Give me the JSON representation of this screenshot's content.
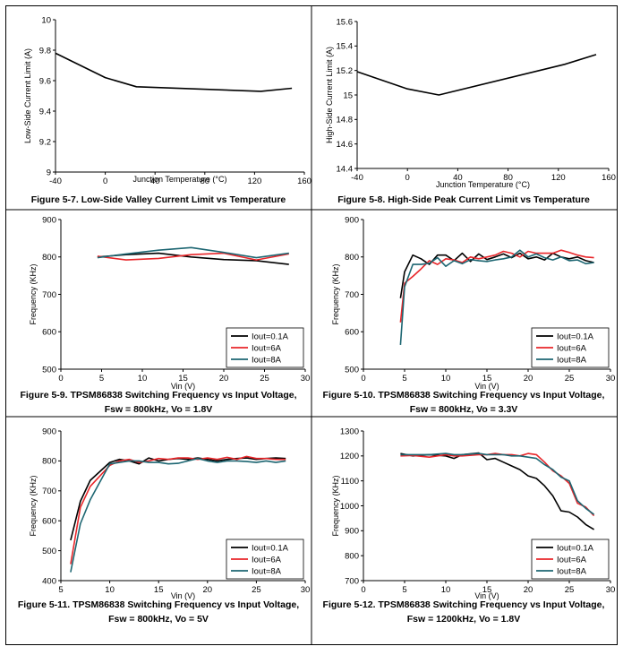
{
  "chart_data": [
    {
      "type": "line",
      "caption": [
        "Figure 5-7. Low-Side Valley Current Limit vs Temperature"
      ],
      "xlabel": "Junction Temperature (°C)",
      "ylabel": "Low-Side Current Limit (A)",
      "xlim": [
        -40,
        160
      ],
      "ylim": [
        9,
        10
      ],
      "xticks": [
        -40,
        0,
        40,
        80,
        120,
        160
      ],
      "yticks": [
        9,
        9.2,
        9.4,
        9.6,
        9.8,
        10
      ],
      "legend": [],
      "series": [
        {
          "color": "#000000",
          "x": [
            -40,
            0,
            25,
            125,
            150
          ],
          "y": [
            9.78,
            9.62,
            9.56,
            9.53,
            9.55
          ]
        }
      ]
    },
    {
      "type": "line",
      "caption": [
        "Figure 5-8. High-Side Peak Current Limit vs Temperature"
      ],
      "xlabel": "Junction Temperature (°C)",
      "ylabel": "High-Side Current Limit (A)",
      "xlim": [
        -40,
        160
      ],
      "ylim": [
        14.4,
        15.6
      ],
      "xticks": [
        -40,
        0,
        40,
        80,
        120,
        160
      ],
      "yticks": [
        14.4,
        14.6,
        14.8,
        15,
        15.2,
        15.4,
        15.6
      ],
      "legend": [],
      "series": [
        {
          "color": "#000000",
          "x": [
            -40,
            0,
            25,
            125,
            150
          ],
          "y": [
            15.19,
            15.05,
            15.0,
            15.25,
            15.33
          ]
        }
      ]
    },
    {
      "type": "line",
      "caption": [
        "Figure 5-9. TPSM86838 Switching Frequency vs Input Voltage,",
        "Fsw = 800kHz, Vo = 1.8V"
      ],
      "xlabel": "Vin (V)",
      "ylabel": "Frequency (KHz)",
      "xlim": [
        0,
        30
      ],
      "ylim": [
        500,
        900
      ],
      "xticks": [
        0,
        5,
        10,
        15,
        20,
        25,
        30
      ],
      "yticks": [
        500,
        600,
        700,
        800,
        900
      ],
      "legend": [
        "Iout=0.1A",
        "Iout=6A",
        "Iout=8A"
      ],
      "series": [
        {
          "name": "Iout=0.1A",
          "color": "#000000",
          "x": [
            4.5,
            8,
            12,
            16,
            20,
            24,
            28
          ],
          "y": [
            800,
            806,
            810,
            800,
            793,
            790,
            780
          ]
        },
        {
          "name": "Iout=6A",
          "color": "#e8262a",
          "x": [
            4.5,
            8,
            12,
            16,
            20,
            24,
            28
          ],
          "y": [
            802,
            792,
            796,
            806,
            810,
            792,
            808
          ]
        },
        {
          "name": "Iout=8A",
          "color": "#1d6672",
          "x": [
            4.5,
            8,
            12,
            16,
            20,
            24,
            28
          ],
          "y": [
            798,
            808,
            818,
            825,
            812,
            798,
            810
          ]
        }
      ]
    },
    {
      "type": "line",
      "caption": [
        "Figure 5-10. TPSM86838 Switching Frequency vs Input Voltage,",
        "Fsw = 800kHz, Vo = 3.3V"
      ],
      "xlabel": "Vin (V)",
      "ylabel": "Frequency (KHz)",
      "xlim": [
        0,
        30
      ],
      "ylim": [
        500,
        900
      ],
      "xticks": [
        0,
        5,
        10,
        15,
        20,
        25,
        30
      ],
      "yticks": [
        500,
        600,
        700,
        800,
        900
      ],
      "legend": [
        "Iout=0.1A",
        "Iout=6A",
        "Iout=8A"
      ],
      "series": [
        {
          "name": "Iout=0.1A",
          "color": "#000000",
          "x": [
            4.5,
            5,
            6,
            7,
            8,
            9,
            10,
            11,
            12,
            13,
            14,
            15,
            16,
            17,
            18,
            19,
            20,
            21,
            22,
            23,
            24,
            25,
            26,
            27,
            28
          ],
          "y": [
            690,
            760,
            805,
            795,
            780,
            805,
            805,
            790,
            810,
            788,
            808,
            793,
            800,
            808,
            798,
            810,
            795,
            800,
            792,
            810,
            800,
            795,
            800,
            790,
            785
          ]
        },
        {
          "name": "Iout=6A",
          "color": "#e8262a",
          "x": [
            4.5,
            5,
            6,
            7,
            8,
            9,
            10,
            11,
            12,
            13,
            14,
            15,
            16,
            17,
            18,
            19,
            20,
            21,
            22,
            23,
            24,
            25,
            26,
            27,
            28
          ],
          "y": [
            625,
            730,
            748,
            768,
            790,
            780,
            795,
            792,
            785,
            800,
            795,
            800,
            805,
            815,
            810,
            800,
            815,
            810,
            810,
            810,
            818,
            812,
            805,
            800,
            798
          ]
        },
        {
          "name": "Iout=8A",
          "color": "#1d6672",
          "x": [
            4.5,
            5,
            6,
            7,
            8,
            9,
            10,
            11,
            12,
            13,
            14,
            15,
            16,
            17,
            18,
            19,
            20,
            21,
            22,
            23,
            24,
            25,
            26,
            27,
            28
          ],
          "y": [
            565,
            720,
            780,
            780,
            783,
            798,
            775,
            790,
            782,
            793,
            790,
            788,
            792,
            795,
            800,
            818,
            800,
            808,
            798,
            792,
            800,
            790,
            792,
            782,
            785
          ]
        }
      ]
    },
    {
      "type": "line",
      "caption": [
        "Figure 5-11. TPSM86838 Switching Frequency vs Input Voltage,",
        "Fsw = 800kHz, Vo = 5V"
      ],
      "xlabel": "Vin (V)",
      "ylabel": "Frequency (KHz)",
      "xlim": [
        5,
        30
      ],
      "ylim": [
        400,
        900
      ],
      "xticks": [
        5,
        10,
        15,
        20,
        25,
        30
      ],
      "yticks": [
        400,
        500,
        600,
        700,
        800,
        900
      ],
      "legend": [
        "Iout=0.1A",
        "Iout=6A",
        "Iout=8A"
      ],
      "series": [
        {
          "name": "Iout=0.1A",
          "color": "#000000",
          "x": [
            6,
            7,
            8,
            10,
            11,
            12,
            13,
            14,
            15,
            16,
            17,
            18,
            19,
            20,
            21,
            22,
            23,
            24,
            25,
            26,
            27,
            28
          ],
          "y": [
            535,
            665,
            735,
            795,
            805,
            800,
            790,
            810,
            800,
            805,
            808,
            805,
            810,
            805,
            800,
            805,
            808,
            810,
            805,
            808,
            810,
            808
          ]
        },
        {
          "name": "Iout=6A",
          "color": "#e8262a",
          "x": [
            6,
            7,
            8,
            10,
            11,
            12,
            13,
            14,
            15,
            16,
            17,
            18,
            19,
            20,
            21,
            22,
            23,
            24,
            25,
            26,
            27,
            28
          ],
          "y": [
            455,
            645,
            715,
            785,
            800,
            805,
            795,
            800,
            808,
            805,
            810,
            810,
            805,
            810,
            805,
            812,
            805,
            815,
            808,
            808,
            805,
            805
          ]
        },
        {
          "name": "Iout=8A",
          "color": "#1d6672",
          "x": [
            6,
            7,
            8,
            10,
            11,
            12,
            13,
            14,
            15,
            16,
            17,
            18,
            19,
            20,
            21,
            22,
            23,
            24,
            25,
            26,
            27,
            28
          ],
          "y": [
            428,
            590,
            670,
            790,
            795,
            800,
            800,
            795,
            795,
            790,
            792,
            800,
            808,
            800,
            795,
            800,
            800,
            798,
            795,
            800,
            795,
            800
          ]
        }
      ]
    },
    {
      "type": "line",
      "caption": [
        "Figure 5-12. TPSM86838 Switching Frequency vs Input Voltage,",
        "Fsw = 1200kHz, Vo = 1.8V"
      ],
      "xlabel": "Vin (V)",
      "ylabel": "Frequency (KHz)",
      "xlim": [
        0,
        30
      ],
      "ylim": [
        700,
        1300
      ],
      "xticks": [
        0,
        5,
        10,
        15,
        20,
        25,
        30
      ],
      "yticks": [
        700,
        800,
        900,
        1000,
        1100,
        1200,
        1300
      ],
      "legend": [
        "Iout=0.1A",
        "Iout=6A",
        "Iout=8A"
      ],
      "series": [
        {
          "name": "Iout=0.1A",
          "color": "#000000",
          "x": [
            4.5,
            6,
            8,
            10,
            11,
            12,
            14,
            15,
            16,
            17,
            18,
            19,
            20,
            21,
            22,
            23,
            24,
            25,
            26,
            27,
            28
          ],
          "y": [
            1210,
            1200,
            1205,
            1200,
            1190,
            1205,
            1212,
            1185,
            1190,
            1175,
            1160,
            1145,
            1120,
            1110,
            1080,
            1040,
            980,
            975,
            955,
            925,
            905
          ]
        },
        {
          "name": "Iout=6A",
          "color": "#e8262a",
          "x": [
            4.5,
            6,
            8,
            10,
            11,
            12,
            14,
            15,
            16,
            17,
            18,
            19,
            20,
            21,
            22,
            23,
            24,
            25,
            26,
            27,
            28
          ],
          "y": [
            1200,
            1202,
            1195,
            1205,
            1200,
            1200,
            1205,
            1205,
            1210,
            1205,
            1205,
            1200,
            1210,
            1205,
            1175,
            1140,
            1120,
            1090,
            1010,
            995,
            960
          ]
        },
        {
          "name": "Iout=8A",
          "color": "#1d6672",
          "x": [
            4.5,
            6,
            8,
            10,
            11,
            12,
            14,
            15,
            16,
            17,
            18,
            19,
            20,
            21,
            22,
            23,
            24,
            25,
            26,
            27,
            28
          ],
          "y": [
            1205,
            1205,
            1205,
            1210,
            1205,
            1205,
            1210,
            1205,
            1205,
            1205,
            1200,
            1200,
            1195,
            1190,
            1165,
            1145,
            1115,
            1100,
            1020,
            990,
            965
          ]
        }
      ]
    }
  ]
}
